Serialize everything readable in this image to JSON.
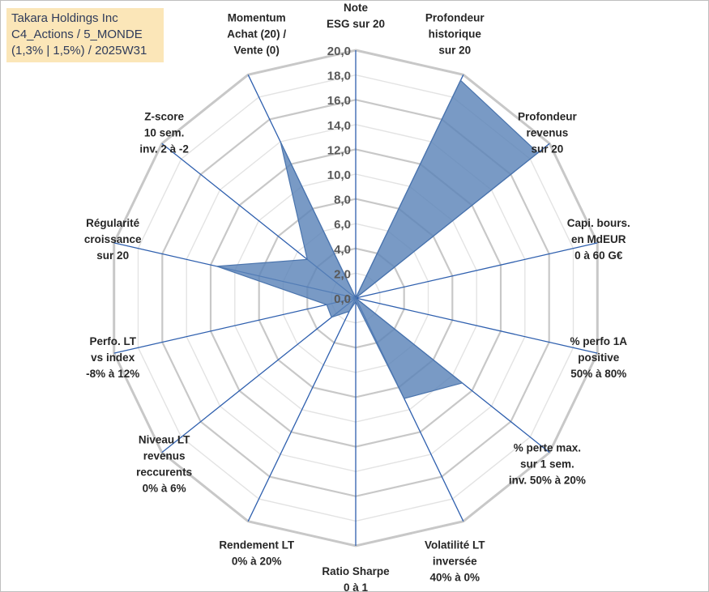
{
  "title": {
    "line1": "Takara Holdings Inc",
    "line2": "C4_Actions / 5_MONDE",
    "line3": "(1,3% | 1,5%) / 2025W31"
  },
  "colors": {
    "fill": "#5b84b8",
    "stroke": "#4a74ad",
    "ring": "#c8c8c8",
    "inner_ring": "#e3e3e3",
    "spoke": "#2e5fae",
    "title_bg": "#fbe6b8"
  },
  "chart_data": {
    "type": "radar",
    "rmin": 0,
    "rmax": 20,
    "tick_step": 2,
    "ticks": [
      "0,0",
      "2,0",
      "4,0",
      "6,0",
      "8,0",
      "10,0",
      "12,0",
      "14,0",
      "16,0",
      "18,0",
      "20,0"
    ],
    "categories": [
      [
        "Note",
        "ESG sur 20"
      ],
      [
        "Profondeur",
        "historique",
        "sur 20"
      ],
      [
        "Profondeur",
        "revenus",
        "sur 20"
      ],
      [
        "Capi. bours.",
        "en MdEUR",
        "0 à 60 G€"
      ],
      [
        "% perfo 1A",
        "positive",
        "50% à 80%"
      ],
      [
        "% perte max.",
        "sur 1 sem.",
        "inv. 50% à 20%"
      ],
      [
        "Volatilité LT",
        "inversée",
        "40% à 0%"
      ],
      [
        "Ratio Sharpe",
        "0 à 1"
      ],
      [
        "Rendement LT",
        "0% à 20%"
      ],
      [
        "Niveau LT",
        "revenus",
        "reccurents",
        "0% à 6%"
      ],
      [
        "Perfo. LT",
        "vs index",
        "-8% à 12%"
      ],
      [
        "Régularité",
        "croissance",
        "sur 20"
      ],
      [
        "Z-score",
        "10 sem.",
        "inv. 2 à -2"
      ],
      [
        "Momentum",
        "Achat (20) /",
        "Vente (0)"
      ]
    ],
    "values": [
      0.0,
      19.5,
      18.8,
      0.0,
      0.0,
      11.0,
      9.0,
      0.3,
      1.2,
      2.5,
      2.4,
      11.5,
      5.0,
      14.0
    ],
    "grid": true,
    "legend": "none"
  }
}
